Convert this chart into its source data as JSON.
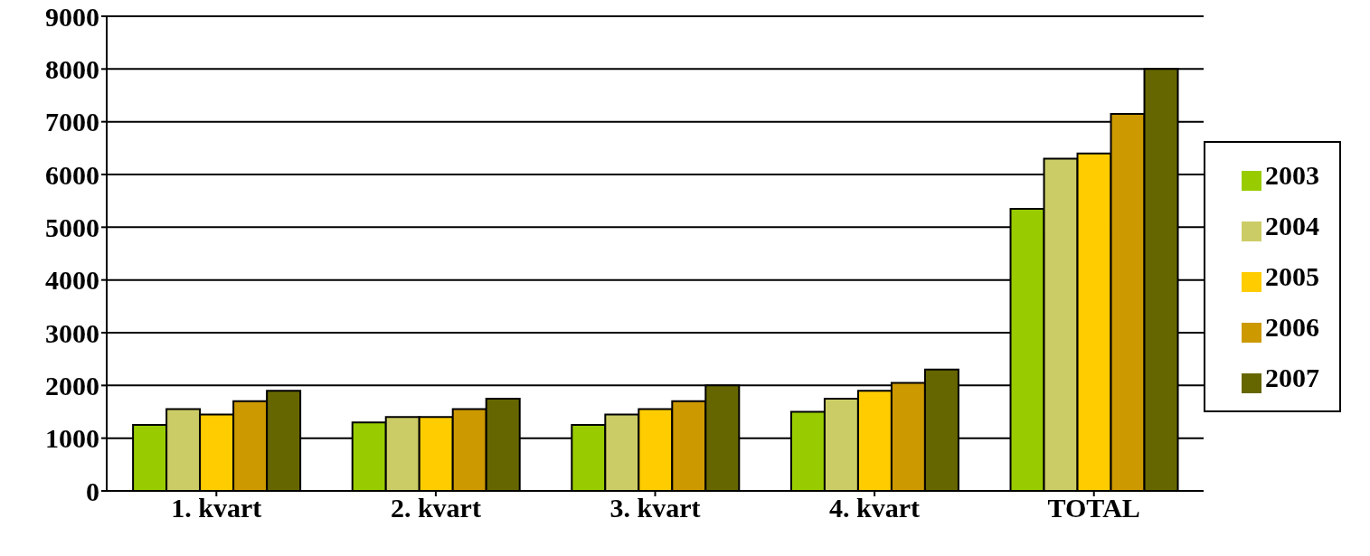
{
  "chart_data": {
    "type": "bar",
    "categories": [
      "1. kvart",
      "2. kvart",
      "3. kvart",
      "4. kvart",
      "TOTAL"
    ],
    "series": [
      {
        "name": "2003",
        "color": "#99cc00",
        "values": [
          1250,
          1300,
          1250,
          1500,
          5350
        ]
      },
      {
        "name": "2004",
        "color": "#cccc66",
        "values": [
          1550,
          1400,
          1450,
          1750,
          6300
        ]
      },
      {
        "name": "2005",
        "color": "#ffcc00",
        "values": [
          1450,
          1400,
          1550,
          1900,
          6400
        ]
      },
      {
        "name": "2006",
        "color": "#cc9900",
        "values": [
          1700,
          1550,
          1700,
          2050,
          7150
        ]
      },
      {
        "name": "2007",
        "color": "#666600",
        "values": [
          1900,
          1750,
          2000,
          2300,
          8000
        ]
      }
    ],
    "ylim": [
      0,
      9000
    ],
    "yticks": [
      0,
      1000,
      2000,
      3000,
      4000,
      5000,
      6000,
      7000,
      8000,
      9000
    ],
    "grid": "y",
    "legend": "right"
  }
}
